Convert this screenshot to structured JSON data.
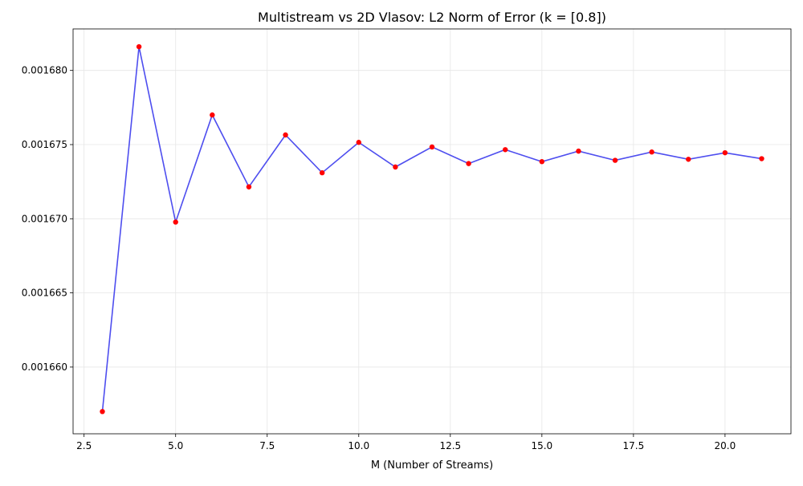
{
  "chart_data": {
    "type": "line",
    "title": "Multistream vs 2D Vlasov: L2 Norm of Error (k = [0.8])",
    "xlabel": "M (Number of Streams)",
    "ylabel": "",
    "xlim": [
      2.2,
      21.8
    ],
    "ylim": [
      0.0016555,
      0.0016828
    ],
    "x_ticks": [
      2.5,
      5.0,
      7.5,
      10.0,
      12.5,
      15.0,
      17.5,
      20.0
    ],
    "x_tick_labels": [
      "2.5",
      "5.0",
      "7.5",
      "10.0",
      "12.5",
      "15.0",
      "17.5",
      "20.0"
    ],
    "y_ticks": [
      0.00166,
      0.001665,
      0.00167,
      0.001675,
      0.00168
    ],
    "y_tick_labels": [
      "0.001660",
      "0.001665",
      "0.001670",
      "0.001675",
      "0.001680"
    ],
    "grid": true,
    "line_color": "#4444ee",
    "marker_color": "#ff0000",
    "x": [
      3,
      4,
      5,
      6,
      7,
      8,
      9,
      10,
      11,
      12,
      13,
      14,
      15,
      16,
      17,
      18,
      19,
      20,
      21
    ],
    "y": [
      0.001657,
      0.0016816,
      0.001669775,
      0.001677,
      0.00167215,
      0.00167565,
      0.0016731,
      0.00167515,
      0.00167349,
      0.00167484,
      0.00167372,
      0.00167466,
      0.00167385,
      0.00167456,
      0.00167394,
      0.0016745,
      0.00167401,
      0.00167445,
      0.00167405
    ]
  }
}
